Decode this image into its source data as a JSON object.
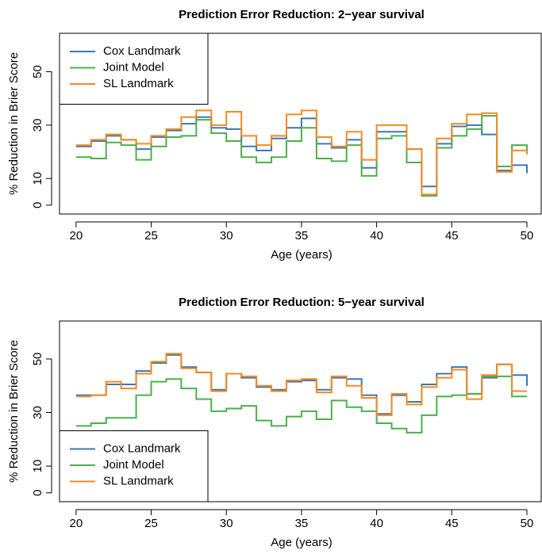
{
  "chart_data": [
    {
      "type": "line",
      "step": true,
      "title": "Prediction Error Reduction: 2−year survival",
      "x_label": "Age (years)",
      "y_label": "% Reduction in Brier Score",
      "x": [
        20,
        21,
        22,
        23,
        24,
        25,
        26,
        27,
        28,
        29,
        30,
        31,
        32,
        33,
        34,
        35,
        36,
        37,
        38,
        39,
        40,
        41,
        42,
        43,
        44,
        45,
        46,
        47,
        48,
        49,
        50
      ],
      "xlim": [
        18.9,
        50.95
      ],
      "ylim": [
        -3.3,
        64.4
      ],
      "xticks": [
        20,
        25,
        30,
        35,
        40,
        45,
        50
      ],
      "yticks": [
        0,
        10,
        30,
        50
      ],
      "legend": "top-left",
      "series": [
        {
          "name": "Cox Landmark",
          "color": "#3a78b5",
          "values": [
            22,
            24,
            26,
            24.5,
            21,
            25.5,
            28,
            30.5,
            33,
            29,
            28.5,
            22,
            20.5,
            25,
            29,
            32.5,
            23,
            21.5,
            24.5,
            14,
            27.5,
            27.5,
            21,
            7,
            23,
            29.5,
            30,
            26.5,
            13,
            15,
            12
          ]
        },
        {
          "name": "Joint Model",
          "color": "#4bb04b",
          "values": [
            18,
            17.5,
            23.5,
            22.5,
            17,
            22,
            25.5,
            26,
            32,
            27,
            24,
            18,
            16,
            18,
            24,
            29,
            17.5,
            16.5,
            22.5,
            11,
            25,
            26,
            16,
            3.5,
            21.5,
            26,
            28.5,
            33.5,
            14.5,
            22.5,
            19.5
          ]
        },
        {
          "name": "SL Landmark",
          "color": "#f58a1f",
          "values": [
            22.5,
            24.5,
            26.5,
            24.5,
            23,
            26,
            28.5,
            33,
            35.5,
            30,
            35,
            26,
            22.5,
            26,
            34,
            35.5,
            25.5,
            22,
            27.5,
            17,
            30,
            30,
            21,
            4,
            25,
            30.5,
            34,
            34.5,
            12.5,
            20.5,
            19
          ]
        }
      ]
    },
    {
      "type": "line",
      "step": true,
      "title": "Prediction Error Reduction: 5−year survival",
      "x_label": "Age (years)",
      "y_label": "% Reduction in Brier Score",
      "x": [
        20,
        21,
        22,
        23,
        24,
        25,
        26,
        27,
        28,
        29,
        30,
        31,
        32,
        33,
        34,
        35,
        36,
        37,
        38,
        39,
        40,
        41,
        42,
        43,
        44,
        45,
        46,
        47,
        48,
        49,
        50
      ],
      "xlim": [
        18.9,
        50.95
      ],
      "ylim": [
        -3.3,
        64.2
      ],
      "xticks": [
        20,
        25,
        30,
        35,
        40,
        45,
        50
      ],
      "yticks": [
        0,
        10,
        30,
        50
      ],
      "legend": "bottom-left",
      "series": [
        {
          "name": "Cox Landmark",
          "color": "#3a78b5",
          "values": [
            36.5,
            36.5,
            40.5,
            40.5,
            45.5,
            48.5,
            51.5,
            47,
            45,
            38.5,
            44.5,
            43,
            39.5,
            38.5,
            41.5,
            42,
            38.5,
            43,
            42.5,
            36.5,
            29.5,
            36.5,
            34,
            40.5,
            44.5,
            47,
            37,
            43,
            48,
            44,
            40
          ]
        },
        {
          "name": "Joint Model",
          "color": "#4bb04b",
          "values": [
            25,
            26,
            28,
            28,
            36.5,
            41.5,
            42.5,
            39,
            35,
            30.5,
            31.5,
            32.5,
            27,
            25,
            28.5,
            30.5,
            27.5,
            34.5,
            32,
            30.5,
            26,
            24,
            22.5,
            29,
            36,
            36.5,
            37,
            43.5,
            43.5,
            36,
            36
          ]
        },
        {
          "name": "SL Landmark",
          "color": "#f58a1f",
          "values": [
            36,
            36.5,
            41.5,
            39,
            44.5,
            49,
            52,
            46.5,
            45,
            38,
            44.5,
            43.5,
            40,
            38,
            42,
            42.5,
            37.5,
            43.5,
            40,
            35.5,
            29,
            37,
            33,
            39.5,
            43,
            46,
            35,
            44,
            48,
            38,
            38
          ]
        }
      ]
    }
  ]
}
